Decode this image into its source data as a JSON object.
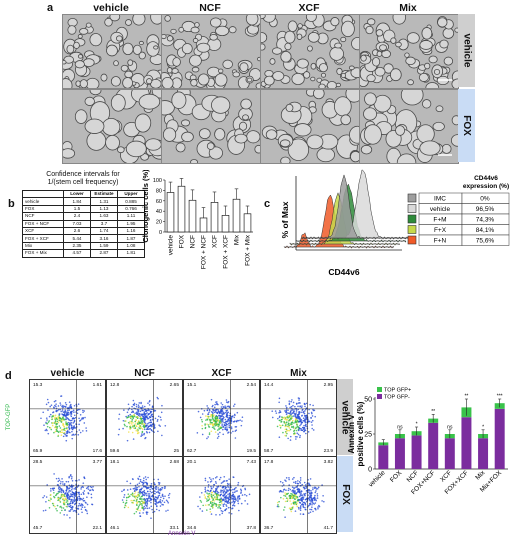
{
  "panel_a": {
    "letter": "a",
    "columns": [
      "vehicle",
      "NCF",
      "XCF",
      "Mix"
    ],
    "rows": [
      "vehicle",
      "FOX"
    ]
  },
  "panel_b": {
    "letter": "b",
    "table_title_line1": "Confidence intervals for",
    "table_title_line2": "1/(stem cell frequency)",
    "table_headers": [
      "",
      "Lower",
      "Estimate",
      "Upper"
    ],
    "table_rows": [
      [
        "vehicle",
        "1.84",
        "1.31",
        "0.885"
      ],
      [
        "FOX",
        "1.5",
        "1.13",
        "0.766"
      ],
      [
        "NCF",
        "2.4",
        "1.63",
        "1.11"
      ],
      [
        "FOX + NCF",
        "7.03",
        "3.7",
        "1.95"
      ],
      [
        "XCF",
        "2.6",
        "1.74",
        "1.16"
      ],
      [
        "FOX + XCF",
        "5.44",
        "3.16",
        "1.87"
      ],
      [
        "Mix",
        "2.35",
        "1.59",
        "1.08"
      ],
      [
        "FOX + Mix",
        "4.57",
        "2.87",
        "1.81"
      ]
    ]
  },
  "panel_c": {
    "letter": "c",
    "ylabel": "% of Max",
    "xlabel": "CD44v6",
    "legend_title_line1": "CD44v6",
    "legend_title_line2": "expression (%)",
    "legend": [
      {
        "label": "IMC",
        "value": "0%",
        "color": "#9e9e9e"
      },
      {
        "label": "vehicle",
        "value": "96,5%",
        "color": "#d9d9d9"
      },
      {
        "label": "F+M",
        "value": "74,3%",
        "color": "#2e8b3a"
      },
      {
        "label": "F+X",
        "value": "84,1%",
        "color": "#c6d94a"
      },
      {
        "label": "F+N",
        "value": "75,6%",
        "color": "#f05a28"
      }
    ]
  },
  "panel_d": {
    "letter": "d",
    "columns": [
      "vehicle",
      "NCF",
      "XCF",
      "Mix"
    ],
    "rows": [
      "vehicle",
      "FOX"
    ],
    "y_axis_label": "TOP-GFP",
    "x_axis_label": "Annexin V",
    "quadrants": [
      [
        {
          "tl": "15.3",
          "tr": "1.61",
          "bl": "65.9",
          "br": "17.6"
        },
        {
          "tl": "12.8",
          "tr": "2.65",
          "bl": "59.6",
          "br": "25"
        },
        {
          "tl": "15.1",
          "tr": "2.54",
          "bl": "62.7",
          "br": "19.5"
        },
        {
          "tl": "14.4",
          "tr": "2.95",
          "bl": "58.7",
          "br": "23.9"
        }
      ],
      [
        {
          "tl": "28.5",
          "tr": "3.77",
          "bl": "45.7",
          "br": "22.1"
        },
        {
          "tl": "18.1",
          "tr": "2.68",
          "bl": "46.1",
          "br": "33.1"
        },
        {
          "tl": "20.1",
          "tr": "7.43",
          "bl": "34.6",
          "br": "37.8"
        },
        {
          "tl": "17.8",
          "tr": "3.82",
          "bl": "36.7",
          "br": "41.7"
        }
      ]
    ]
  },
  "chart_data": [
    {
      "type": "bar",
      "ylabel": "Clonogenic cells (%)",
      "categories": [
        "vehicle",
        "FOX",
        "NCF",
        "FOX + NCF",
        "XCF",
        "FOX + XCF",
        "Mix",
        "FOX + Mix"
      ],
      "values": [
        76,
        88,
        61,
        27,
        57,
        32,
        63,
        35
      ],
      "errors": [
        20,
        15,
        20,
        20,
        20,
        18,
        20,
        15
      ],
      "ylim": [
        0,
        100
      ],
      "yticks": [
        "0",
        "20",
        "40",
        "60",
        "80",
        "100"
      ]
    },
    {
      "type": "bar",
      "ylabel_line1": "Annexin V",
      "ylabel_line2": "positive cells (%)",
      "categories": [
        "vehicle",
        "FOX",
        "NCF",
        "FOX+NCF",
        "XCF",
        "FOX+XCF",
        "Mix",
        "Mix+FOX"
      ],
      "ylim": [
        0,
        50
      ],
      "yticks": [
        "0",
        "25",
        "50"
      ],
      "series": [
        {
          "name": "TOP GFP-",
          "color": "#7b2d9e",
          "values": [
            17,
            22,
            24,
            33,
            22,
            37,
            22,
            43
          ]
        },
        {
          "name": "TOP GFP+",
          "color": "#39c24a",
          "values": [
            2,
            3,
            3,
            3,
            3,
            7,
            3,
            4
          ]
        }
      ],
      "errors": [
        2,
        3,
        3,
        3,
        3,
        6,
        3,
        3
      ],
      "significance": [
        "",
        "ns",
        "*",
        "**",
        "ns",
        "**",
        "*",
        "***"
      ]
    }
  ]
}
